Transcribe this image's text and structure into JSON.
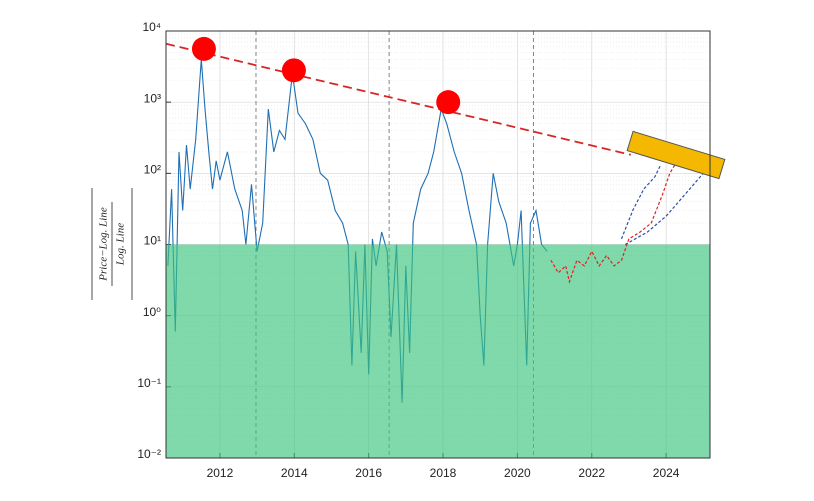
{
  "chart_data": {
    "type": "line",
    "ylabel_numerator": "Price−Log. Line",
    "ylabel_denominator": "Log. Line",
    "log_y": true,
    "grid": true,
    "minor_grid": true,
    "xlim": [
      2010.55,
      2025.18
    ],
    "ylim": [
      0.01,
      10000
    ],
    "xticks": [
      2012,
      2014,
      2016,
      2018,
      2020,
      2022,
      2024
    ],
    "yticks": [
      {
        "value": 0.01,
        "label": "10⁻²"
      },
      {
        "value": 0.1,
        "label": "10⁻¹"
      },
      {
        "value": 1,
        "label": "10⁰"
      },
      {
        "value": 10,
        "label": "10¹"
      },
      {
        "value": 100,
        "label": "10²"
      },
      {
        "value": 1000,
        "label": "10³"
      },
      {
        "value": 10000,
        "label": "10⁴"
      }
    ],
    "shaded_range": [
      0.01,
      10
    ],
    "shaded_color": "#3cc47c",
    "vlines": [
      2012.97,
      2016.55,
      2020.43
    ],
    "series": [
      {
        "style": "solid",
        "color": "#1f6fb5",
        "x": [
          2010.6,
          2010.7,
          2010.8,
          2010.9,
          2011.0,
          2011.1,
          2011.2,
          2011.35,
          2011.5,
          2011.6,
          2011.7,
          2011.8,
          2011.9,
          2012.0,
          2012.2,
          2012.4,
          2012.6,
          2012.7,
          2012.85,
          2013.0,
          2013.15,
          2013.3,
          2013.45,
          2013.6,
          2013.75,
          2013.95,
          2014.1,
          2014.3,
          2014.5,
          2014.7,
          2014.9,
          2015.1,
          2015.3,
          2015.45,
          2015.55,
          2015.65,
          2015.8,
          2015.9,
          2016.0,
          2016.1,
          2016.2,
          2016.35,
          2016.5,
          2016.6,
          2016.75,
          2016.9,
          2017.0,
          2017.1,
          2017.2,
          2017.4,
          2017.6,
          2017.75,
          2017.95,
          2018.1,
          2018.3,
          2018.5,
          2018.7,
          2018.9,
          2019.0,
          2019.1,
          2019.2,
          2019.35,
          2019.5,
          2019.7,
          2019.9,
          2020.0,
          2020.1,
          2020.25,
          2020.35,
          2020.5,
          2020.65,
          2020.8
        ],
        "values": [
          5,
          60,
          0.6,
          200,
          30,
          250,
          60,
          300,
          4000,
          800,
          200,
          60,
          150,
          80,
          200,
          60,
          30,
          10,
          70,
          8,
          20,
          800,
          200,
          400,
          300,
          2500,
          700,
          500,
          300,
          100,
          80,
          30,
          20,
          10,
          0.2,
          8,
          0.3,
          10,
          0.15,
          12,
          5,
          15,
          8,
          0.5,
          10,
          0.06,
          5,
          0.3,
          20,
          60,
          100,
          200,
          800,
          500,
          200,
          100,
          30,
          10,
          1,
          0.2,
          10,
          100,
          40,
          20,
          5,
          10,
          30,
          0.2,
          20,
          30,
          10,
          8
        ]
      },
      {
        "style": "dashed",
        "color": "#e02020",
        "x": [
          2020.9,
          2021.1,
          2021.3,
          2021.4,
          2021.6,
          2021.8,
          2022.0,
          2022.2,
          2022.4,
          2022.6,
          2022.8,
          2023.0,
          2023.3,
          2023.6,
          2023.9,
          2024.1,
          2024.3
        ],
        "values": [
          6,
          4,
          5,
          3,
          6,
          5,
          8,
          5,
          7,
          5,
          6,
          12,
          15,
          20,
          50,
          100,
          150
        ]
      },
      {
        "style": "dashed",
        "color": "#2f4fa8",
        "x": [
          2022.8,
          2023.1,
          2023.4,
          2023.7,
          2023.85
        ],
        "values": [
          12,
          30,
          60,
          90,
          130
        ]
      },
      {
        "style": "dashed",
        "color": "#2f4fa8",
        "x": [
          2022.9,
          2023.5,
          2024.0,
          2024.5,
          2025.0,
          2025.15
        ],
        "values": [
          10,
          15,
          25,
          50,
          100,
          120
        ]
      },
      {
        "style": "trend",
        "color": "#d62728",
        "x": [
          2010.55,
          2023.05
        ],
        "values": [
          6600,
          182
        ]
      },
      {
        "style": "markers",
        "color": "#ff0000",
        "x": [
          2011.57,
          2013.99,
          2018.14
        ],
        "values": [
          5600,
          2800,
          1000
        ]
      }
    ]
  }
}
